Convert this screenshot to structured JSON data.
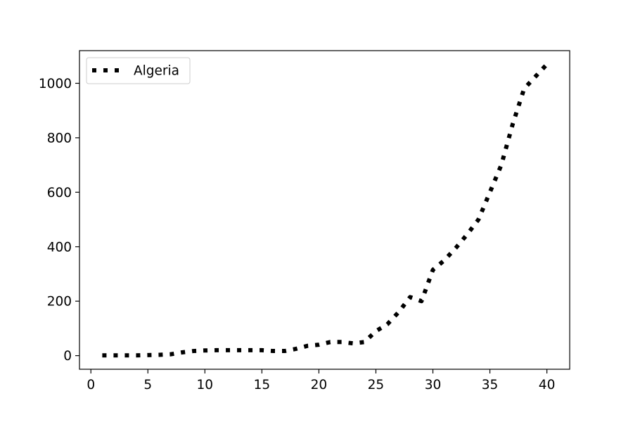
{
  "chart_data": {
    "type": "line",
    "title": "",
    "xlabel": "",
    "ylabel": "",
    "xlim": [
      -1,
      42
    ],
    "ylim": [
      -50,
      1120
    ],
    "xticks": [
      0,
      5,
      10,
      15,
      20,
      25,
      30,
      35,
      40
    ],
    "yticks": [
      0,
      200,
      400,
      600,
      800,
      1000
    ],
    "grid": false,
    "legend": {
      "position": "top-left"
    },
    "series": [
      {
        "name": "Algeria",
        "color": "#000000",
        "line_style": "dotted",
        "x": [
          1,
          2,
          3,
          4,
          5,
          6,
          7,
          8,
          9,
          10,
          11,
          12,
          13,
          14,
          15,
          16,
          17,
          18,
          19,
          20,
          21,
          22,
          23,
          24,
          25,
          26,
          27,
          28,
          29,
          30,
          31,
          32,
          33,
          34,
          35,
          36,
          37,
          38,
          39,
          40
        ],
        "y": [
          1,
          1,
          1,
          1,
          2,
          3,
          5,
          12,
          17,
          19,
          20,
          20,
          20,
          20,
          20,
          17,
          17,
          25,
          36,
          40,
          50,
          50,
          45,
          50,
          90,
          115,
          160,
          215,
          200,
          315,
          350,
          395,
          445,
          500,
          600,
          700,
          850,
          980,
          1025,
          1070
        ]
      }
    ]
  }
}
